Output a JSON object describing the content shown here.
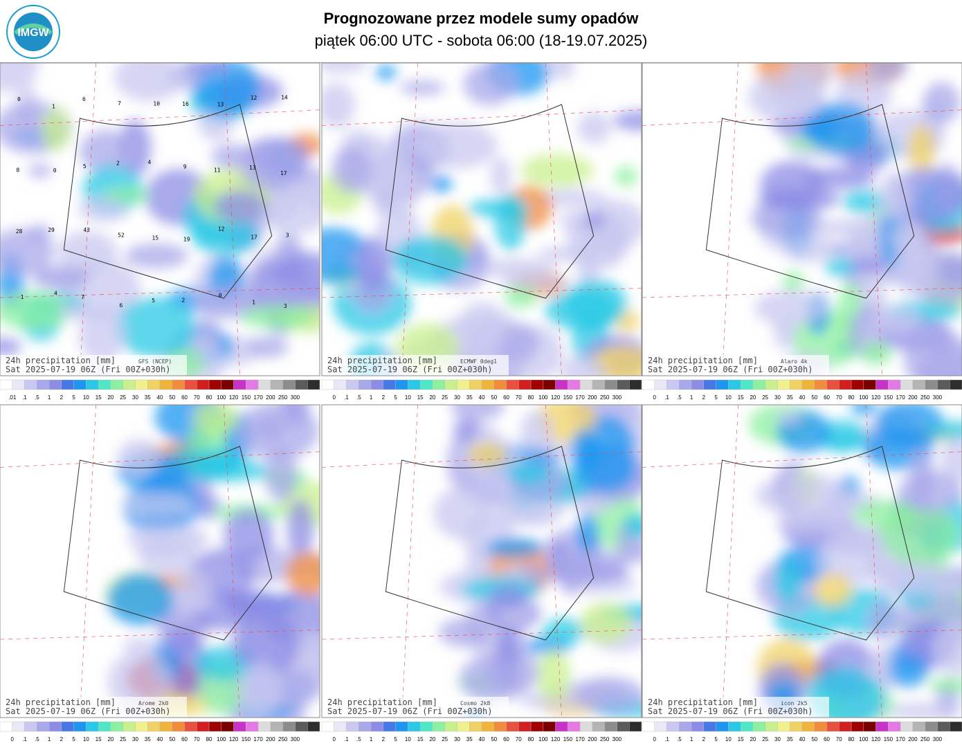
{
  "header": {
    "logo": "IMGW",
    "title": "Prognozowane przez modele sumy opadów",
    "subtitle": "piątek 06:00 UTC - sobota 06:00 (18-19.07.2025)"
  },
  "panels": [
    {
      "caption": "24h precipitation  [mm]",
      "model": "GFS (NCEP)",
      "valid": "Sat 2025-07-19 06Z (Fri 00Z+030h)",
      "scale": [
        ".01",
        ".1",
        ".5",
        "1",
        "2",
        "5",
        "10",
        "15",
        "20",
        "25",
        "30",
        "35",
        "40",
        "50",
        "60",
        "70",
        "80",
        "100",
        "120",
        "150",
        "170",
        "200",
        "250",
        "300"
      ],
      "point_labels": [
        "0",
        "1",
        "6",
        "7",
        "10",
        "16",
        "13",
        "12",
        "14",
        "8",
        "0",
        "5",
        "2",
        "4",
        "9",
        "11",
        "13",
        "17",
        "28",
        "29",
        "43",
        "52",
        "15",
        "19",
        "12",
        "17",
        "3",
        "1",
        "4",
        "7",
        "6",
        "5",
        "2",
        "0",
        "1",
        "3"
      ]
    },
    {
      "caption": "24h precipitation  [mm]",
      "model": "ECMWF 0deg1",
      "valid": "Sat 2025-07-19 06Z (Fri 00Z+030h)",
      "scale": [
        "0",
        ".1",
        ".5",
        "1",
        "2",
        "5",
        "10",
        "15",
        "20",
        "25",
        "30",
        "35",
        "40",
        "50",
        "60",
        "70",
        "80",
        "100",
        "120",
        "150",
        "170",
        "200",
        "250",
        "300"
      ]
    },
    {
      "caption": "24h precipitation  [mm]",
      "model": "Alaro 4k",
      "valid": "Sat 2025-07-19 06Z (Fri 00Z+030h)",
      "scale": [
        "0",
        ".1",
        ".5",
        "1",
        "2",
        "5",
        "10",
        "15",
        "20",
        "25",
        "30",
        "35",
        "40",
        "50",
        "60",
        "70",
        "80",
        "100",
        "120",
        "150",
        "170",
        "200",
        "250",
        "300"
      ]
    },
    {
      "caption": "24h precipitation  [mm]",
      "model": "Arome 2k0",
      "valid": "Sat 2025-07-19 06Z (Fri 00Z+030h)",
      "scale": [
        "0",
        ".1",
        ".5",
        "1",
        "2",
        "5",
        "10",
        "15",
        "20",
        "25",
        "30",
        "35",
        "40",
        "50",
        "60",
        "70",
        "80",
        "100",
        "120",
        "150",
        "170",
        "200",
        "250",
        "300"
      ]
    },
    {
      "caption": "24h precipitation  [mm]",
      "model": "Cosmo 2k8",
      "valid": "Sat 2025-07-19 06Z (Fri 00Z+030h)",
      "scale": [
        "0",
        ".1",
        ".5",
        "1",
        "2",
        "5",
        "10",
        "15",
        "20",
        "25",
        "30",
        "35",
        "40",
        "50",
        "60",
        "70",
        "80",
        "100",
        "120",
        "150",
        "170",
        "200",
        "250",
        "300"
      ]
    },
    {
      "caption": "24h precipitation  [mm]",
      "model": "icon 2k5",
      "valid": "Sat 2025-07-19 06Z (Fri 00Z+030h)",
      "scale": [
        "0",
        ".1",
        ".5",
        "1",
        "2",
        "5",
        "10",
        "15",
        "20",
        "25",
        "30",
        "35",
        "40",
        "50",
        "60",
        "70",
        "80",
        "100",
        "120",
        "150",
        "170",
        "200",
        "250",
        "300"
      ]
    }
  ]
}
